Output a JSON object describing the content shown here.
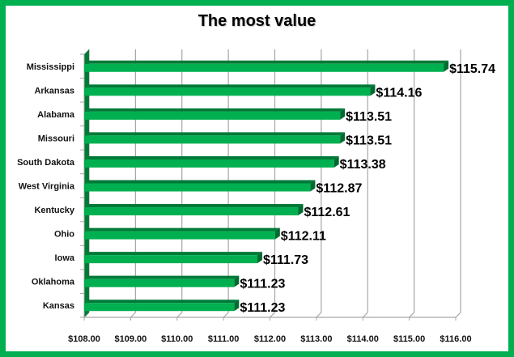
{
  "chart_data": {
    "type": "bar",
    "orientation": "horizontal",
    "title": "The most value",
    "xlabel": "",
    "ylabel": "",
    "categories": [
      "Mississippi",
      "Arkansas",
      "Alabama",
      "Missouri",
      "South Dakota",
      "West Virginia",
      "Kentucky",
      "Ohio",
      "Iowa",
      "Oklahoma",
      "Kansas"
    ],
    "values": [
      115.74,
      114.16,
      113.51,
      113.51,
      113.38,
      112.87,
      112.61,
      112.11,
      111.73,
      111.23,
      111.23
    ],
    "value_labels": [
      "$115.74",
      "$114.16",
      "$113.51",
      "$113.51",
      "$113.38",
      "$112.87",
      "$112.61",
      "$112.11",
      "$111.73",
      "$111.23",
      "$111.23"
    ],
    "xlim": [
      108,
      116
    ],
    "x_ticks": [
      "$108.00",
      "$109.00",
      "$110.00",
      "$111.00",
      "$112.00",
      "$113.00",
      "$114.00",
      "$115.00",
      "$116.00"
    ],
    "grid": true,
    "legend": false,
    "colors": {
      "bar": "#00b050",
      "bar_dark": "#007a38",
      "border": "#00b050",
      "grid": "#a6a6a6"
    }
  }
}
